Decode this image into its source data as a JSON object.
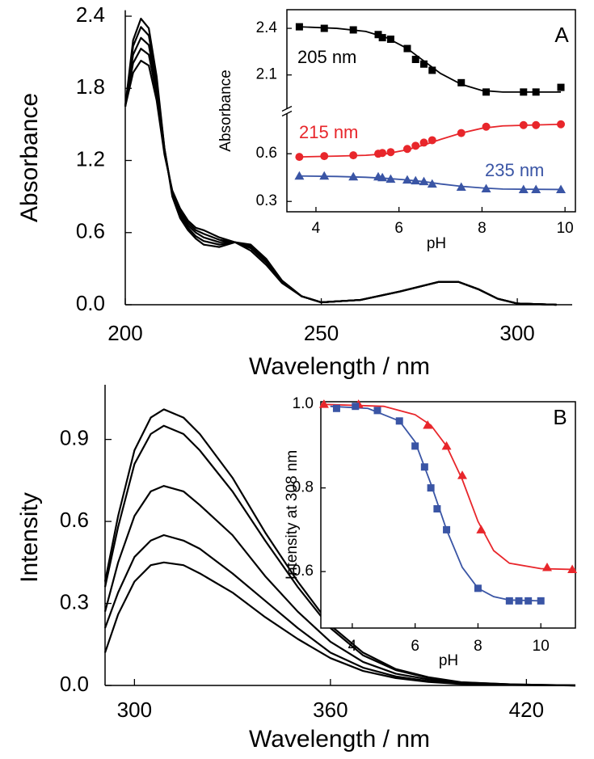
{
  "chart_data": [
    {
      "type": "line",
      "xlabel": "Wavelength / nm",
      "ylabel": "Absorbance",
      "xlim": [
        200,
        314
      ],
      "ylim": [
        0,
        2.45
      ],
      "xticks": [
        200,
        250,
        300
      ],
      "yticks": [
        {
          "value": 0,
          "label": "0.0"
        },
        0.6,
        1.2,
        1.8,
        2.4
      ],
      "color": "#000000",
      "x": [
        200,
        202,
        204,
        206,
        208,
        210,
        212,
        214,
        216,
        218,
        220,
        224,
        228,
        232,
        236,
        240,
        245,
        250,
        260,
        270,
        280,
        285,
        290,
        295,
        300,
        310
      ],
      "series": [
        {
          "values": [
            1.65,
            2.2,
            2.38,
            2.3,
            1.9,
            1.3,
            0.9,
            0.72,
            0.62,
            0.55,
            0.5,
            0.48,
            0.52,
            0.5,
            0.38,
            0.2,
            0.07,
            0.02,
            0.04,
            0.11,
            0.19,
            0.19,
            0.13,
            0.05,
            0.01,
            0
          ]
        },
        {
          "values": [
            1.65,
            2.15,
            2.31,
            2.24,
            1.86,
            1.3,
            0.92,
            0.74,
            0.64,
            0.57,
            0.53,
            0.5,
            0.52,
            0.49,
            0.37,
            0.2,
            0.07,
            0.02,
            0.04,
            0.11,
            0.19,
            0.19,
            0.13,
            0.05,
            0.01,
            0
          ]
        },
        {
          "values": [
            1.65,
            2.08,
            2.22,
            2.16,
            1.8,
            1.28,
            0.93,
            0.76,
            0.66,
            0.6,
            0.56,
            0.52,
            0.52,
            0.48,
            0.36,
            0.19,
            0.07,
            0.02,
            0.04,
            0.11,
            0.19,
            0.19,
            0.13,
            0.05,
            0.01,
            0
          ]
        },
        {
          "values": [
            1.65,
            2.01,
            2.13,
            2.08,
            1.75,
            1.27,
            0.94,
            0.78,
            0.68,
            0.62,
            0.59,
            0.54,
            0.52,
            0.47,
            0.35,
            0.19,
            0.07,
            0.02,
            0.04,
            0.11,
            0.19,
            0.19,
            0.13,
            0.05,
            0.01,
            0
          ]
        },
        {
          "values": [
            1.65,
            1.93,
            2.03,
            1.99,
            1.7,
            1.25,
            0.95,
            0.8,
            0.7,
            0.64,
            0.62,
            0.56,
            0.52,
            0.45,
            0.33,
            0.18,
            0.07,
            0.02,
            0.04,
            0.11,
            0.19,
            0.19,
            0.13,
            0.05,
            0.01,
            0
          ]
        }
      ]
    },
    {
      "type": "scatter",
      "panel_label": "A",
      "xlabel": "pH",
      "ylabel": "Absorbance",
      "xlim": [
        3.3,
        10.25
      ],
      "ylim": [
        0.235,
        0.855
      ],
      "y2lim": [
        1.88,
        2.52
      ],
      "xticks": [
        4,
        6,
        8,
        10
      ],
      "yticks": [
        0.3,
        0.6
      ],
      "y2ticks": [
        2.1,
        2.4
      ],
      "series": [
        {
          "color": "#000000",
          "marker": "none",
          "axis": "y2",
          "x": [
            3.6,
            4.5,
            5.2,
            5.7,
            6.2,
            6.6,
            7.0,
            7.5,
            8.0,
            8.5,
            9.9
          ],
          "values": [
            2.41,
            2.4,
            2.38,
            2.34,
            2.27,
            2.19,
            2.11,
            2.04,
            2.0,
            1.99,
            1.99
          ]
        },
        {
          "name": "205 nm",
          "color": "#000000",
          "marker": "square",
          "axis": "y2",
          "x": [
            3.6,
            4.2,
            4.9,
            5.5,
            5.6,
            5.8,
            6.2,
            6.4,
            6.6,
            6.8,
            7.5,
            8.1,
            9.0,
            9.3,
            9.9
          ],
          "values": [
            2.41,
            2.4,
            2.39,
            2.36,
            2.34,
            2.33,
            2.27,
            2.2,
            2.17,
            2.13,
            2.05,
            1.99,
            1.99,
            1.99,
            2.02
          ]
        },
        {
          "color": "#e8262b",
          "marker": "none",
          "x": [
            3.6,
            4.5,
            5.2,
            5.7,
            6.2,
            6.6,
            7.0,
            7.5,
            8.0,
            8.5,
            9.9
          ],
          "values": [
            0.58,
            0.585,
            0.59,
            0.6,
            0.625,
            0.655,
            0.69,
            0.73,
            0.76,
            0.775,
            0.785
          ]
        },
        {
          "name": "215 nm",
          "color": "#e8262b",
          "marker": "circle",
          "x": [
            3.6,
            4.2,
            4.9,
            5.5,
            5.6,
            5.8,
            6.2,
            6.4,
            6.6,
            6.8,
            7.5,
            8.1,
            9.0,
            9.3,
            9.9
          ],
          "values": [
            0.58,
            0.585,
            0.59,
            0.6,
            0.605,
            0.61,
            0.63,
            0.65,
            0.67,
            0.685,
            0.73,
            0.77,
            0.78,
            0.78,
            0.785
          ]
        },
        {
          "color": "#3a55a5",
          "marker": "none",
          "x": [
            3.6,
            4.5,
            5.2,
            5.7,
            6.2,
            6.6,
            7.0,
            7.5,
            8.0,
            8.5,
            9.9
          ],
          "values": [
            0.46,
            0.457,
            0.452,
            0.445,
            0.435,
            0.425,
            0.41,
            0.395,
            0.385,
            0.378,
            0.375
          ]
        },
        {
          "name": "235 nm",
          "color": "#3a55a5",
          "marker": "triangle",
          "x": [
            3.6,
            4.2,
            4.9,
            5.5,
            5.6,
            5.8,
            6.2,
            6.4,
            6.6,
            6.8,
            7.5,
            8.1,
            9.0,
            9.3,
            9.9
          ],
          "values": [
            0.46,
            0.46,
            0.455,
            0.455,
            0.45,
            0.44,
            0.435,
            0.43,
            0.425,
            0.41,
            0.39,
            0.38,
            0.375,
            0.375,
            0.375
          ]
        }
      ]
    },
    {
      "type": "line",
      "xlabel": "Wavelength / nm",
      "ylabel": "Intensity",
      "xlim": [
        291,
        435
      ],
      "ylim": [
        0,
        1.1
      ],
      "xticks": [
        300,
        360,
        420
      ],
      "yticks": [
        {
          "value": 0,
          "label": "0.0"
        },
        0.3,
        0.6,
        0.9
      ],
      "color": "#000000",
      "x": [
        291,
        295,
        300,
        305,
        309,
        315,
        320,
        330,
        340,
        350,
        360,
        370,
        380,
        390,
        400,
        415,
        435
      ],
      "series": [
        {
          "values": [
            0.38,
            0.62,
            0.86,
            0.98,
            1.01,
            0.98,
            0.92,
            0.76,
            0.56,
            0.38,
            0.22,
            0.12,
            0.06,
            0.03,
            0.012,
            0.004,
            0
          ]
        },
        {
          "values": [
            0.36,
            0.58,
            0.81,
            0.92,
            0.95,
            0.92,
            0.86,
            0.71,
            0.53,
            0.36,
            0.21,
            0.11,
            0.056,
            0.028,
            0.011,
            0.004,
            0
          ]
        },
        {
          "values": [
            0.27,
            0.45,
            0.62,
            0.71,
            0.73,
            0.71,
            0.66,
            0.55,
            0.4,
            0.27,
            0.16,
            0.086,
            0.043,
            0.022,
            0.009,
            0.003,
            0
          ]
        },
        {
          "values": [
            0.21,
            0.34,
            0.47,
            0.53,
            0.55,
            0.53,
            0.5,
            0.41,
            0.31,
            0.21,
            0.12,
            0.065,
            0.033,
            0.016,
            0.007,
            0.002,
            0
          ]
        },
        {
          "values": [
            0.12,
            0.26,
            0.38,
            0.44,
            0.45,
            0.44,
            0.41,
            0.34,
            0.25,
            0.17,
            0.1,
            0.053,
            0.027,
            0.013,
            0.005,
            0.002,
            0
          ]
        }
      ]
    },
    {
      "type": "scatter",
      "panel_label": "B",
      "xlabel": "pH",
      "ylabel": "Intensity at 308 nm",
      "xlim": [
        3,
        11.1
      ],
      "ylim": [
        0.465,
        1.006
      ],
      "xticks": [
        4,
        6,
        8,
        10
      ],
      "yticks": [
        0.6,
        0.8,
        {
          "value": 1,
          "label": "1.0"
        }
      ],
      "series": [
        {
          "color": "#e8262b",
          "marker": "none",
          "x": [
            3,
            5,
            6,
            6.5,
            7,
            7.5,
            8,
            8.5,
            9,
            10,
            11.1
          ],
          "values": [
            1.0,
            0.995,
            0.975,
            0.95,
            0.9,
            0.82,
            0.72,
            0.65,
            0.62,
            0.607,
            0.605
          ]
        },
        {
          "color": "#3a55a5",
          "marker": "none",
          "x": [
            3.3,
            4.5,
            5.5,
            6,
            6.5,
            7,
            7.5,
            8,
            8.5,
            9,
            10
          ],
          "values": [
            0.995,
            0.99,
            0.96,
            0.91,
            0.81,
            0.7,
            0.61,
            0.56,
            0.54,
            0.532,
            0.53
          ]
        },
        {
          "color": "#e8262b",
          "marker": "triangle",
          "x": [
            3.1,
            4.2,
            6.4,
            7.0,
            7.5,
            8.1,
            10.2,
            11.0
          ],
          "values": [
            1.0,
            1.0,
            0.95,
            0.9,
            0.83,
            0.7,
            0.61,
            0.605
          ]
        },
        {
          "color": "#3a55a5",
          "marker": "square",
          "x": [
            3.5,
            4.1,
            4.8,
            5.5,
            6.0,
            6.3,
            6.5,
            6.7,
            7.0,
            8.0,
            9.0,
            9.3,
            9.6,
            10.0
          ],
          "values": [
            0.99,
            0.995,
            0.985,
            0.96,
            0.9,
            0.85,
            0.8,
            0.75,
            0.7,
            0.56,
            0.53,
            0.53,
            0.53,
            0.53
          ]
        }
      ]
    }
  ]
}
